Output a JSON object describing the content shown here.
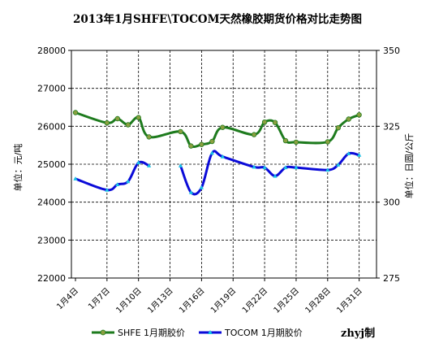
{
  "chart_data": {
    "type": "line",
    "title": "2013年1月SHFE\\TOCOM天然橡胶期货价格对比走势图",
    "ylabel_left": "单位：元/吨",
    "ylabel_right": "单位：日圆/公斤",
    "watermark": "zhyj制",
    "ylim_left": [
      22000,
      28000
    ],
    "ylim_right": [
      275,
      350
    ],
    "yticks_left": [
      "22000",
      "23000",
      "24000",
      "25000",
      "26000",
      "27000",
      "28000"
    ],
    "yticks_right": [
      "275",
      "300",
      "325",
      "350"
    ],
    "xticks": [
      "1月4日",
      "1月7日",
      "1月10日",
      "1月13日",
      "1月16日",
      "1月19日",
      "1月22日",
      "1月25日",
      "1月28日",
      "1月31日"
    ],
    "x": [
      4,
      5,
      6,
      7,
      8,
      9,
      10,
      11,
      12,
      13,
      14,
      15,
      16,
      17,
      18,
      19,
      20,
      21,
      22,
      23,
      24,
      25,
      26,
      27,
      28,
      29,
      30,
      31,
      32
    ],
    "grid": true,
    "series": [
      {
        "name": "SHFE 1月期胶价",
        "axis": "left",
        "color": "#1e7b1e",
        "marker_color": "#8aa040",
        "values": [
          26360,
          null,
          null,
          26090,
          26200,
          26040,
          26230,
          25720,
          null,
          null,
          25860,
          25480,
          25520,
          25600,
          25970,
          null,
          null,
          25780,
          26110,
          26100,
          25620,
          25580,
          null,
          null,
          25590,
          25960,
          26190,
          26300,
          null
        ]
      },
      {
        "name": "TOCOM 1月期胶价",
        "axis": "right",
        "color": "#0b0bd8",
        "marker_color": "#19c4e6",
        "values": [
          307.7,
          null,
          null,
          304.0,
          305.8,
          306.8,
          313.0,
          312.0,
          null,
          null,
          312.0,
          303.2,
          304.8,
          316.2,
          315.0,
          null,
          null,
          311.6,
          311.4,
          308.6,
          311.4,
          311.4,
          null,
          null,
          310.6,
          312.3,
          316.0,
          315.5,
          null
        ]
      }
    ]
  }
}
